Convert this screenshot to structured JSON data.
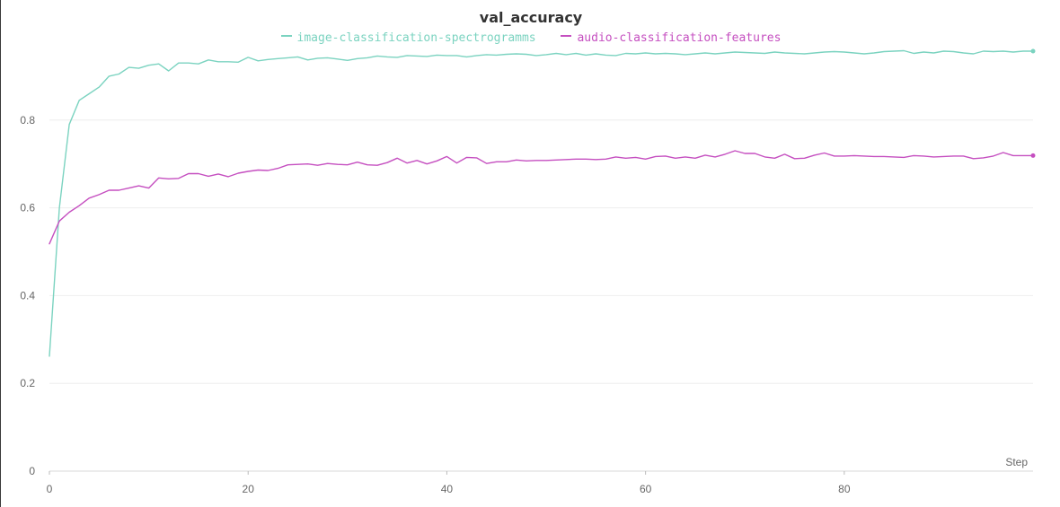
{
  "chart_data": {
    "type": "line",
    "title": "val_accuracy",
    "xlabel": "Step",
    "ylabel": "",
    "xlim": [
      0,
      99
    ],
    "ylim": [
      0,
      1
    ],
    "x_ticks": [
      0,
      20,
      40,
      60,
      80
    ],
    "y_ticks": [
      0,
      0.2,
      0.4,
      0.6,
      0.8
    ],
    "grid": true,
    "legend_position": "top-center",
    "series": [
      {
        "name": "image-classification-spectrogramms",
        "color": "#7bd3c0",
        "values": [
          0.262,
          0.6,
          0.79,
          0.845,
          0.86,
          0.875,
          0.9,
          0.905,
          0.92,
          0.918,
          0.925,
          0.928,
          0.912,
          0.93,
          0.93,
          0.928,
          0.937,
          0.933,
          0.933,
          0.932,
          0.943,
          0.935,
          0.938,
          0.94,
          0.942,
          0.944,
          0.937,
          0.941,
          0.942,
          0.939,
          0.936,
          0.94,
          0.942,
          0.946,
          0.944,
          0.943,
          0.947,
          0.946,
          0.945,
          0.948,
          0.947,
          0.947,
          0.944,
          0.947,
          0.949,
          0.948,
          0.95,
          0.951,
          0.95,
          0.947,
          0.949,
          0.952,
          0.949,
          0.952,
          0.948,
          0.951,
          0.948,
          0.947,
          0.952,
          0.951,
          0.953,
          0.951,
          0.952,
          0.951,
          0.949,
          0.951,
          0.953,
          0.951,
          0.953,
          0.955,
          0.954,
          0.953,
          0.952,
          0.955,
          0.953,
          0.952,
          0.951,
          0.953,
          0.955,
          0.956,
          0.955,
          0.953,
          0.951,
          0.953,
          0.956,
          0.957,
          0.958,
          0.952,
          0.955,
          0.953,
          0.957,
          0.956,
          0.953,
          0.951,
          0.957,
          0.956,
          0.957,
          0.955,
          0.957,
          0.957
        ]
      },
      {
        "name": "audio-classification-features",
        "color": "#c54fc0",
        "values": [
          0.518,
          0.57,
          0.59,
          0.605,
          0.622,
          0.63,
          0.64,
          0.64,
          0.645,
          0.65,
          0.645,
          0.668,
          0.666,
          0.667,
          0.678,
          0.678,
          0.672,
          0.677,
          0.671,
          0.679,
          0.683,
          0.686,
          0.685,
          0.69,
          0.698,
          0.699,
          0.7,
          0.697,
          0.701,
          0.699,
          0.698,
          0.704,
          0.698,
          0.697,
          0.703,
          0.713,
          0.702,
          0.708,
          0.7,
          0.707,
          0.717,
          0.702,
          0.715,
          0.714,
          0.701,
          0.705,
          0.705,
          0.709,
          0.707,
          0.708,
          0.708,
          0.709,
          0.71,
          0.711,
          0.711,
          0.71,
          0.711,
          0.716,
          0.713,
          0.715,
          0.711,
          0.717,
          0.718,
          0.713,
          0.716,
          0.713,
          0.72,
          0.716,
          0.722,
          0.73,
          0.724,
          0.724,
          0.716,
          0.713,
          0.722,
          0.712,
          0.713,
          0.72,
          0.725,
          0.718,
          0.718,
          0.719,
          0.718,
          0.717,
          0.717,
          0.716,
          0.715,
          0.719,
          0.718,
          0.716,
          0.717,
          0.718,
          0.718,
          0.712,
          0.714,
          0.718,
          0.726,
          0.719,
          0.719,
          0.719
        ]
      }
    ]
  }
}
